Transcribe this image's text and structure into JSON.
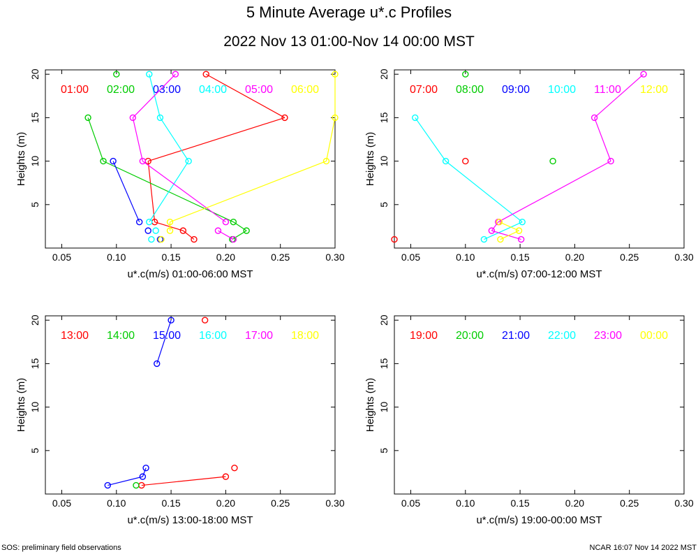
{
  "title": "5 Minute Average u*.c Profiles",
  "subtitle": "2022 Nov 13 01:00-Nov 14 00:00 MST",
  "footer_left": "SOS: preliminary field observations",
  "footer_right": "NCAR 16:07 Nov 14 2022 MST",
  "chart_data": [
    {
      "type": "line",
      "xlabel": "u*.c(m/s) 01:00-06:00 MST",
      "ylabel": "Heights (m)",
      "xlim": [
        0.035,
        0.3
      ],
      "ylim": [
        0,
        20.5
      ],
      "xticks": [
        "0.05",
        "0.10",
        "0.15",
        "0.20",
        "0.25",
        "0.30"
      ],
      "yticks": [
        "5",
        "10",
        "15",
        "20"
      ],
      "series": [
        {
          "name": "01:00",
          "color": "#ff0000",
          "points": [
            [
              0.171,
              1
            ],
            [
              0.161,
              2
            ],
            [
              0.135,
              3
            ],
            [
              0.129,
              10
            ],
            [
              0.254,
              15
            ],
            [
              0.182,
              20
            ]
          ],
          "connected": [
            [
              0,
              1
            ],
            [
              1,
              2
            ],
            [
              2,
              3
            ],
            [
              3,
              4
            ],
            [
              4,
              5
            ]
          ]
        },
        {
          "name": "02:00",
          "color": "#00cc00",
          "points": [
            [
              0.206,
              1
            ],
            [
              0.219,
              2
            ],
            [
              0.207,
              3
            ],
            [
              0.088,
              10
            ],
            [
              0.074,
              15
            ],
            [
              0.1,
              20
            ]
          ],
          "connected": [
            [
              0,
              1
            ],
            [
              1,
              2
            ],
            [
              2,
              3
            ],
            [
              3,
              4
            ]
          ]
        },
        {
          "name": "03:00",
          "color": "#0000ff",
          "points": [
            [
              0.14,
              1
            ],
            [
              0.129,
              2
            ],
            [
              0.121,
              3
            ],
            [
              0.097,
              10
            ]
          ],
          "connected": [
            [
              2,
              3
            ]
          ]
        },
        {
          "name": "04:00",
          "color": "#00ffff",
          "points": [
            [
              0.132,
              1
            ],
            [
              0.136,
              2
            ],
            [
              0.13,
              3
            ],
            [
              0.166,
              10
            ],
            [
              0.14,
              15
            ],
            [
              0.13,
              20
            ]
          ],
          "connected": [
            [
              2,
              3
            ],
            [
              3,
              4
            ],
            [
              4,
              5
            ]
          ]
        },
        {
          "name": "05:00",
          "color": "#ff00ff",
          "points": [
            [
              0.207,
              1
            ],
            [
              0.193,
              2
            ],
            [
              0.2,
              3
            ],
            [
              0.124,
              10
            ],
            [
              0.115,
              15
            ],
            [
              0.154,
              20
            ]
          ],
          "connected": [
            [
              0,
              1
            ],
            [
              2,
              3
            ],
            [
              3,
              4
            ],
            [
              4,
              5
            ]
          ]
        },
        {
          "name": "06:00",
          "color": "#ffff00",
          "points": [
            [
              0.141,
              1
            ],
            [
              0.149,
              2
            ],
            [
              0.149,
              3
            ],
            [
              0.292,
              10
            ],
            [
              0.3,
              15
            ],
            [
              0.3,
              20
            ]
          ],
          "connected": [
            [
              1,
              2
            ],
            [
              2,
              3
            ],
            [
              3,
              4
            ],
            [
              4,
              5
            ]
          ]
        }
      ]
    },
    {
      "type": "line",
      "xlabel": "u*.c(m/s) 07:00-12:00 MST",
      "ylabel": "Heights (m)",
      "xlim": [
        0.035,
        0.3
      ],
      "ylim": [
        0,
        20.5
      ],
      "xticks": [
        "0.05",
        "0.10",
        "0.15",
        "0.20",
        "0.25",
        "0.30"
      ],
      "yticks": [
        "5",
        "10",
        "15",
        "20"
      ],
      "series": [
        {
          "name": "07:00",
          "color": "#ff0000",
          "points": [
            [
              0.035,
              1
            ],
            [
              0.1,
              10
            ]
          ],
          "connected": []
        },
        {
          "name": "08:00",
          "color": "#00cc00",
          "points": [
            [
              0.18,
              10
            ],
            [
              0.1,
              20
            ]
          ],
          "connected": []
        },
        {
          "name": "09:00",
          "color": "#0000ff",
          "points": [],
          "connected": []
        },
        {
          "name": "10:00",
          "color": "#00ffff",
          "points": [
            [
              0.117,
              1
            ],
            [
              0.152,
              3
            ],
            [
              0.082,
              10
            ],
            [
              0.054,
              15
            ]
          ],
          "connected": [
            [
              0,
              1
            ],
            [
              1,
              2
            ],
            [
              2,
              3
            ]
          ]
        },
        {
          "name": "11:00",
          "color": "#ff00ff",
          "points": [
            [
              0.151,
              1
            ],
            [
              0.124,
              2
            ],
            [
              0.13,
              3
            ],
            [
              0.233,
              10
            ],
            [
              0.218,
              15
            ],
            [
              0.263,
              20
            ]
          ],
          "connected": [
            [
              0,
              1
            ],
            [
              1,
              2
            ],
            [
              2,
              3
            ],
            [
              3,
              4
            ],
            [
              4,
              5
            ]
          ]
        },
        {
          "name": "12:00",
          "color": "#ffff00",
          "points": [
            [
              0.132,
              1
            ],
            [
              0.149,
              2
            ],
            [
              0.131,
              3
            ]
          ],
          "connected": [
            [
              0,
              1
            ],
            [
              1,
              2
            ]
          ]
        }
      ]
    },
    {
      "type": "line",
      "xlabel": "u*.c(m/s) 13:00-18:00 MST",
      "ylabel": "Heights (m)",
      "xlim": [
        0.035,
        0.3
      ],
      "ylim": [
        0,
        20.5
      ],
      "xticks": [
        "0.05",
        "0.10",
        "0.15",
        "0.20",
        "0.25",
        "0.30"
      ],
      "yticks": [
        "5",
        "10",
        "15",
        "20"
      ],
      "series": [
        {
          "name": "13:00",
          "color": "#ff0000",
          "points": [
            [
              0.123,
              1
            ],
            [
              0.2,
              2
            ],
            [
              0.208,
              3
            ],
            [
              0.181,
              20
            ]
          ],
          "connected": [
            [
              0,
              1
            ]
          ]
        },
        {
          "name": "14:00",
          "color": "#00cc00",
          "points": [
            [
              0.118,
              1
            ]
          ],
          "connected": []
        },
        {
          "name": "15:00",
          "color": "#0000ff",
          "points": [
            [
              0.092,
              1
            ],
            [
              0.124,
              2
            ],
            [
              0.127,
              3
            ],
            [
              0.137,
              15
            ],
            [
              0.15,
              20
            ]
          ],
          "connected": [
            [
              0,
              1
            ],
            [
              1,
              2
            ],
            [
              3,
              4
            ]
          ]
        },
        {
          "name": "16:00",
          "color": "#00ffff",
          "points": [],
          "connected": []
        },
        {
          "name": "17:00",
          "color": "#ff00ff",
          "points": [],
          "connected": []
        },
        {
          "name": "18:00",
          "color": "#ffff00",
          "points": [],
          "connected": []
        }
      ]
    },
    {
      "type": "line",
      "xlabel": "u*.c(m/s) 19:00-00:00 MST",
      "ylabel": "Heights (m)",
      "xlim": [
        0.035,
        0.3
      ],
      "ylim": [
        0,
        20.5
      ],
      "xticks": [
        "0.05",
        "0.10",
        "0.15",
        "0.20",
        "0.25",
        "0.30"
      ],
      "yticks": [
        "5",
        "10",
        "15",
        "20"
      ],
      "series": [
        {
          "name": "19:00",
          "color": "#ff0000",
          "points": [],
          "connected": []
        },
        {
          "name": "20:00",
          "color": "#00cc00",
          "points": [],
          "connected": []
        },
        {
          "name": "21:00",
          "color": "#0000ff",
          "points": [],
          "connected": []
        },
        {
          "name": "22:00",
          "color": "#00ffff",
          "points": [],
          "connected": []
        },
        {
          "name": "23:00",
          "color": "#ff00ff",
          "points": [],
          "connected": []
        },
        {
          "name": "00:00",
          "color": "#ffff00",
          "points": [],
          "connected": []
        }
      ]
    }
  ]
}
